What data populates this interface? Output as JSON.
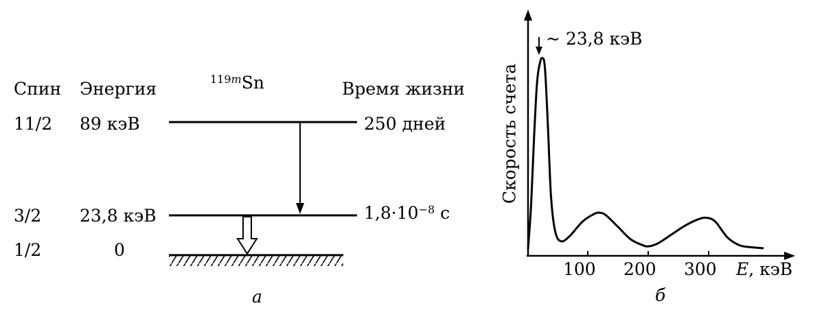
{
  "panel_a": {
    "col_spin": "Спин",
    "col_energy": "Энергия",
    "isotope_mass": "119",
    "isotope_meta": "m",
    "isotope_symbol": "Sn",
    "col_lifetime": "Время жизни",
    "levels": [
      {
        "spin": "11/2",
        "energy": "89 кэВ",
        "lifetime": "250 дней"
      },
      {
        "spin": "3/2",
        "energy": "23,8 кэВ",
        "lifetime_mantissa": "1,8·10",
        "lifetime_exp": "−8",
        "lifetime_unit": "с"
      },
      {
        "spin": "1/2",
        "energy": "0"
      }
    ],
    "caption": "а"
  },
  "panel_b": {
    "peak_label": "~ 23,8 кэВ",
    "ylabel": "Скорость счета",
    "x_ticks": [
      "100",
      "200",
      "300"
    ],
    "xlabel_symbol": "E",
    "xlabel_unit": ", кэВ",
    "caption": "б"
  },
  "chart_data": {
    "type": "line",
    "xlabel": "E, кэВ",
    "ylabel": "Скорость счета",
    "x_ticks": [
      100,
      200,
      300
    ],
    "xlim": [
      0,
      400
    ],
    "annotation": "~ 23,8 кэВ",
    "series": [
      {
        "x": [
          0,
          5,
          10,
          15,
          20,
          24,
          28,
          33,
          38,
          45,
          55,
          70,
          90,
          110,
          120,
          130,
          150,
          170,
          190,
          200,
          215,
          240,
          260,
          280,
          295,
          310,
          330,
          350,
          370,
          390
        ],
        "y": [
          0.03,
          0.25,
          0.6,
          0.88,
          0.98,
          1.0,
          0.95,
          0.65,
          0.3,
          0.12,
          0.07,
          0.1,
          0.17,
          0.21,
          0.215,
          0.2,
          0.14,
          0.08,
          0.05,
          0.045,
          0.06,
          0.11,
          0.15,
          0.18,
          0.19,
          0.17,
          0.09,
          0.05,
          0.04,
          0.035
        ]
      }
    ]
  }
}
